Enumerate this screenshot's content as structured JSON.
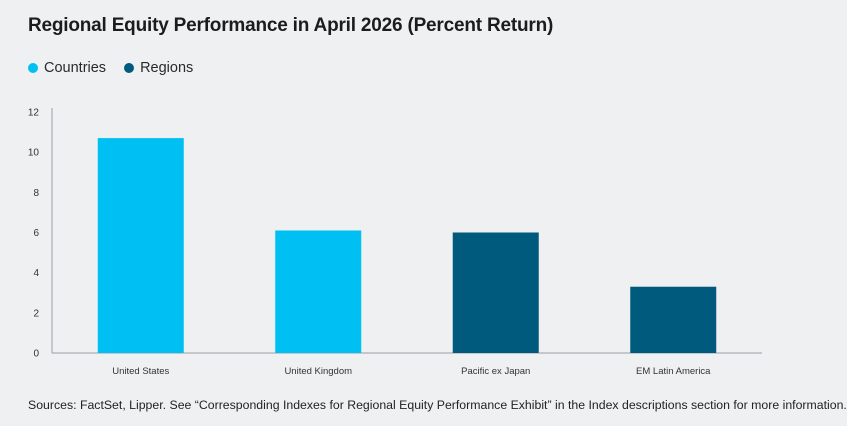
{
  "title": "Regional Equity Performance in April 2026 (Percent Return)",
  "legend": [
    {
      "label": "Countries",
      "color": "#00bff2"
    },
    {
      "label": "Regions",
      "color": "#005a7d"
    }
  ],
  "source": "Sources: FactSet, Lipper. See “Corresponding Indexes for Regional Equity Performance Exhibit” in the Index descriptions section for more information.",
  "chart_data": {
    "type": "bar",
    "categories": [
      "United States",
      "United Kingdom",
      "Pacific ex Japan",
      "EM Latin America"
    ],
    "values": [
      10.7,
      6.1,
      6.0,
      3.3
    ],
    "groups": [
      "Countries",
      "Countries",
      "Regions",
      "Regions"
    ],
    "colors": [
      "#00bff2",
      "#00bff2",
      "#005a7d",
      "#005a7d"
    ],
    "yticks": [
      0,
      2,
      4,
      6,
      8,
      10,
      12
    ],
    "ylim": [
      0,
      12
    ],
    "grid": false,
    "legend_position": "top-left"
  }
}
